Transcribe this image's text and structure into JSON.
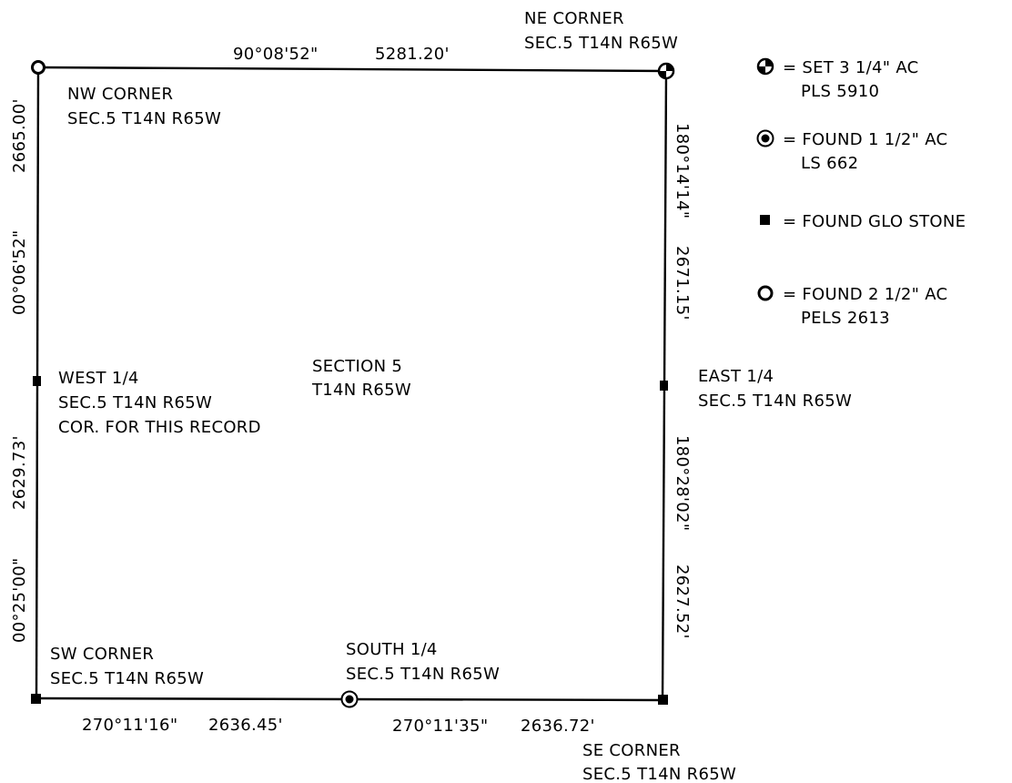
{
  "north_line": {
    "bearing": "90°08'52\"",
    "distance": "5281.20'"
  },
  "west_line_upper": {
    "bearing": "00°06'52\"",
    "distance": "2665.00'"
  },
  "west_line_lower": {
    "bearing": "00°25'00\"",
    "distance": "2629.73'"
  },
  "east_line_upper": {
    "bearing": "180°14'14\"",
    "distance": "2671.15'"
  },
  "east_line_lower": {
    "bearing": "180°28'02\"",
    "distance": "2627.52'"
  },
  "south_line_west": {
    "bearing": "270°11'16\"",
    "distance": "2636.45'"
  },
  "south_line_east": {
    "bearing": "270°11'35\"",
    "distance": "2636.72'"
  },
  "corners": {
    "ne": {
      "name": "NE CORNER",
      "desc": "SEC.5 T14N R65W"
    },
    "nw": {
      "name": "NW CORNER",
      "desc": "SEC.5 T14N R65W"
    },
    "west_quarter": {
      "name": "WEST 1/4",
      "desc": "SEC.5 T14N R65W",
      "note": "COR. FOR THIS RECORD"
    },
    "east_quarter": {
      "name": "EAST 1/4",
      "desc": "SEC.5 T14N R65W"
    },
    "sw": {
      "name": "SW CORNER",
      "desc": "SEC.5 T14N R65W"
    },
    "south_quarter": {
      "name": "SOUTH 1/4",
      "desc": "SEC.5 T14N R65W"
    },
    "se": {
      "name": "SE CORNER",
      "desc": "SEC.5 T14N R65W"
    }
  },
  "section": {
    "name": "SECTION 5",
    "desc": "T14N R65W"
  },
  "legend": [
    {
      "icon": "set-aluminum-cap-icon",
      "line1": "= SET 3 1/4\" AC",
      "line2": "PLS 5910"
    },
    {
      "icon": "found-aluminum-cap-small-icon",
      "line1": "= FOUND 1 1/2\" AC",
      "line2": "LS 662"
    },
    {
      "icon": "glo-stone-icon",
      "line1": "= FOUND GLO STONE",
      "line2": ""
    },
    {
      "icon": "found-aluminum-cap-large-icon",
      "line1": "= FOUND 2 1/2\" AC",
      "line2": "PELS 2613"
    }
  ]
}
